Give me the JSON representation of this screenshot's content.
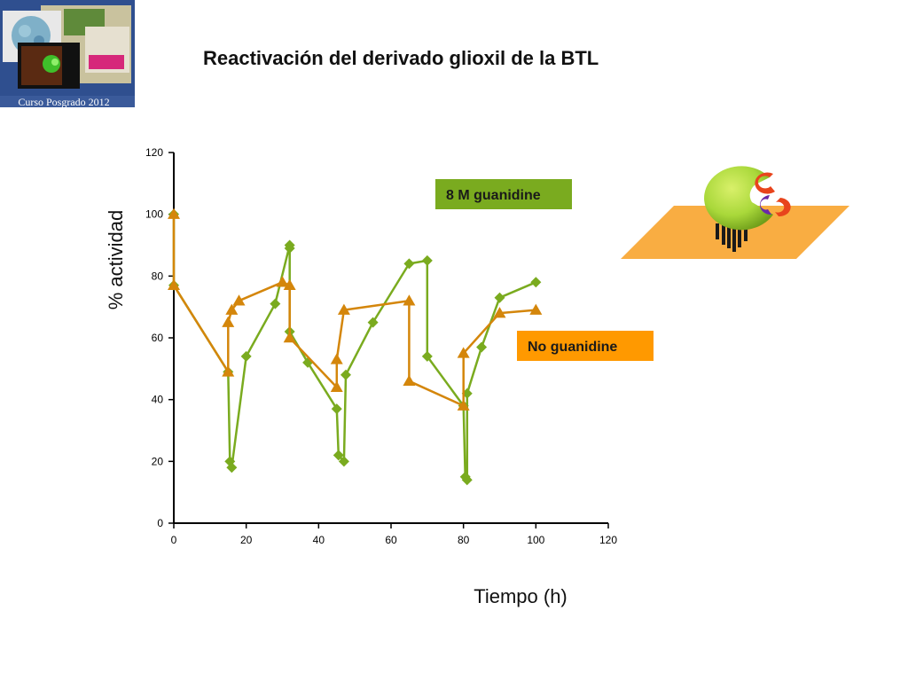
{
  "slide": {
    "title": "Reactivación del derivado glioxil de la BTL",
    "logo_caption": "Curso Posgrado 2012"
  },
  "chart_data": {
    "type": "line",
    "title": "Reactivación del derivado glioxil de la BTL",
    "xlabel": "Tiempo (h)",
    "ylabel": "% actividad",
    "xlim": [
      0,
      120
    ],
    "ylim": [
      0,
      120
    ],
    "xticks": [
      0,
      20,
      40,
      60,
      80,
      100,
      120
    ],
    "yticks": [
      0,
      20,
      40,
      60,
      80,
      100,
      120
    ],
    "grid": false,
    "series": [
      {
        "name": "8 M guanidine",
        "color": "#7aab1f",
        "marker": "diamond",
        "x": [
          0,
          0,
          15,
          15.5,
          16,
          20,
          28,
          32,
          32,
          32,
          37,
          45,
          45.5,
          47,
          47.5,
          55,
          65,
          70,
          70,
          80,
          80.5,
          81,
          81,
          85,
          90,
          100
        ],
        "y": [
          100,
          77,
          49,
          20,
          18,
          54,
          71,
          90,
          89,
          62,
          52,
          37,
          22,
          20,
          48,
          65,
          84,
          85,
          54,
          38,
          15,
          14,
          42,
          57,
          73,
          78
        ]
      },
      {
        "name": "No guanidine",
        "color": "#d4860b",
        "marker": "triangle",
        "x": [
          0,
          0,
          15,
          15,
          16,
          18,
          30,
          32,
          32,
          45,
          45,
          47,
          65,
          65,
          80,
          80,
          90,
          100
        ],
        "y": [
          100,
          77,
          49,
          65,
          69,
          72,
          78,
          77,
          60,
          44,
          53,
          69,
          72,
          46,
          38,
          55,
          68,
          69
        ]
      }
    ],
    "legend_boxes": [
      {
        "label": "8 M guanidine",
        "bg": "#7aab1f"
      },
      {
        "label": "No guanidine",
        "bg": "#ff9900"
      }
    ]
  }
}
